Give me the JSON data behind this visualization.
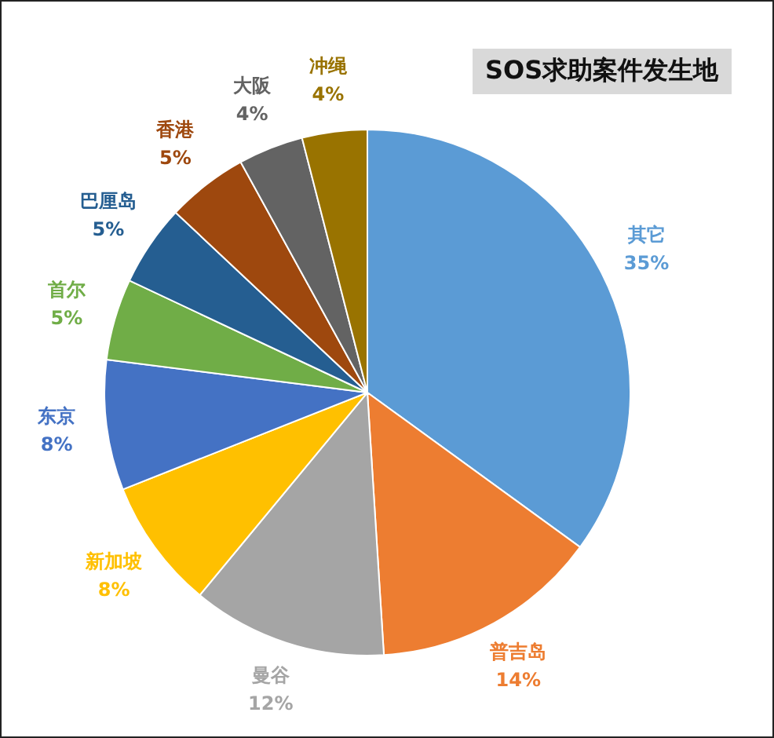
{
  "chart_data": {
    "type": "pie",
    "title": "SOS求助案件发生地",
    "categories": [
      "其它",
      "普吉岛",
      "曼谷",
      "新加坡",
      "东京",
      "首尔",
      "巴厘岛",
      "香港",
      "大阪",
      "冲绳"
    ],
    "values": [
      35,
      14,
      12,
      8,
      8,
      5,
      5,
      5,
      4,
      4
    ],
    "value_labels": [
      "35%",
      "14%",
      "12%",
      "8%",
      "8%",
      "5%",
      "5%",
      "5%",
      "4%",
      "4%"
    ],
    "colors": [
      "#5b9bd5",
      "#ed7d31",
      "#a5a5a5",
      "#ffc000",
      "#4472c4",
      "#70ad47",
      "#255e91",
      "#9e480e",
      "#636363",
      "#997300"
    ],
    "legend": false
  }
}
